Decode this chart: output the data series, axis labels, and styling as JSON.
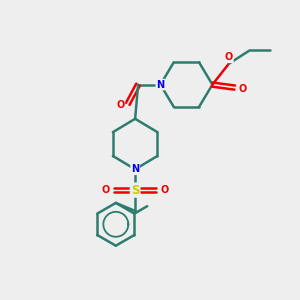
{
  "bg_color": "#eeeeee",
  "bond_color": "#2d7d6e",
  "N_color": "#0000ee",
  "O_color": "#ee0000",
  "S_color": "#cccc00",
  "line_width": 1.8,
  "figsize": [
    3.0,
    3.0
  ],
  "dpi": 100,
  "xlim": [
    0,
    10
  ],
  "ylim": [
    0,
    10
  ]
}
